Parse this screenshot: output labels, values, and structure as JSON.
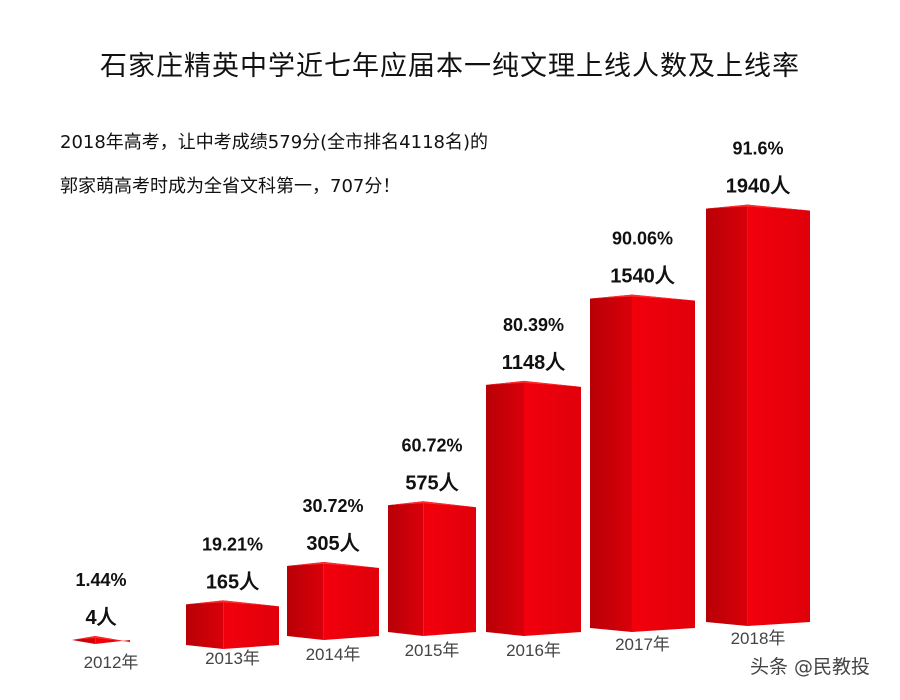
{
  "chart_data": {
    "type": "bar",
    "title": "石家庄精英中学近七年应届本一纯文理上线人数及上线率",
    "annotation": [
      "2018年高考，让中考成绩579分(全市排名4118名)的",
      "郭家萌高考时成为全省文科第一，707分！"
    ],
    "categories": [
      "2012年",
      "2013年",
      "2014年",
      "2015年",
      "2016年",
      "2017年",
      "2018年"
    ],
    "values": [
      4,
      165,
      305,
      575,
      1148,
      1540,
      1940
    ],
    "value_labels": [
      "4人",
      "165人",
      "305人",
      "575人",
      "1148人",
      "1540人",
      "1940人"
    ],
    "rate_labels": [
      "1.44%",
      "19.21%",
      "30.72%",
      "60.72%",
      "80.39%",
      "90.06%",
      "91.6%"
    ],
    "rates": [
      1.44,
      19.21,
      30.72,
      60.72,
      80.39,
      90.06,
      91.6
    ],
    "style": "3d-bar",
    "bar_color": "#e8000a",
    "grid": false
  },
  "watermark": "头条 @民教投"
}
